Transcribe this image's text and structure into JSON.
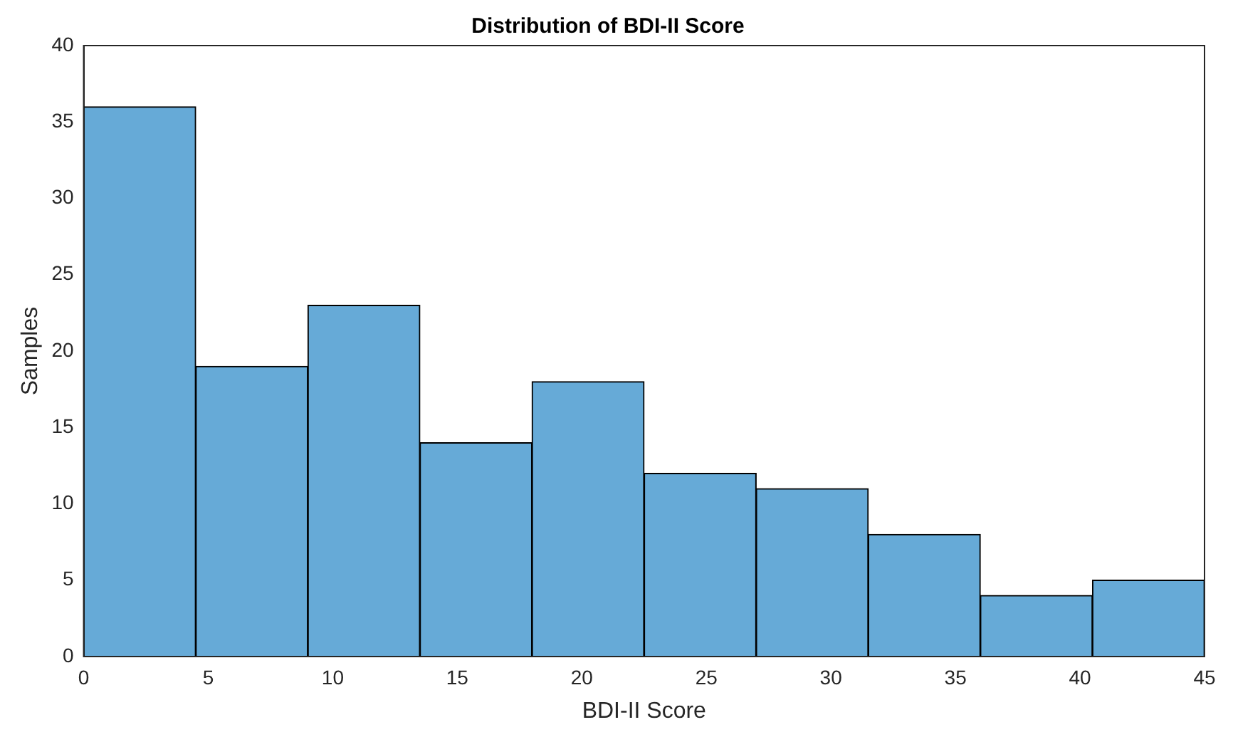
{
  "chart_data": {
    "type": "histogram",
    "title": "Distribution of BDI-II Score",
    "xlabel": "BDI-II Score",
    "ylabel": "Samples",
    "bins": [
      0,
      4.5,
      9,
      13.5,
      18,
      22.5,
      27,
      31.5,
      36,
      40.5,
      45
    ],
    "values": [
      36,
      19,
      23,
      14,
      18,
      12,
      11,
      8,
      4,
      5
    ],
    "color": "#66aad7",
    "xlim": [
      0,
      45
    ],
    "xticks": [
      0,
      5,
      10,
      15,
      20,
      25,
      30,
      35,
      40,
      45
    ],
    "ylim": [
      0,
      40
    ],
    "yticks": [
      0,
      5,
      10,
      15,
      20,
      25,
      30,
      35,
      40
    ],
    "grid": false,
    "legend": false
  }
}
